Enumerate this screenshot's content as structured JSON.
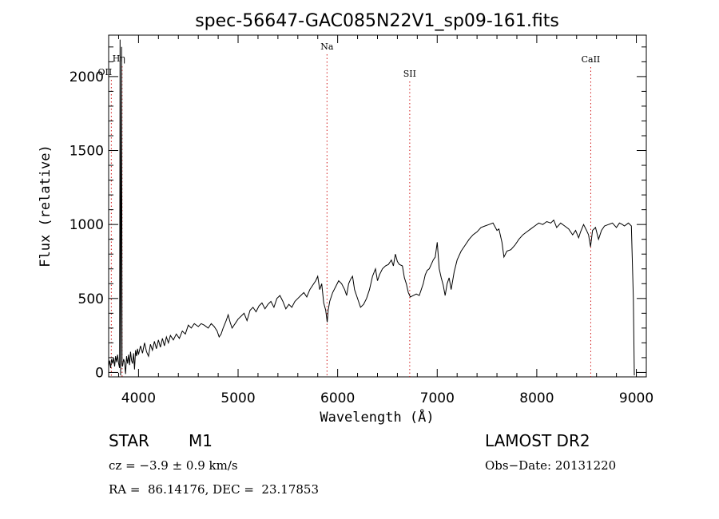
{
  "chart_data": {
    "type": "line",
    "title": "spec-56647-GAC085N22V1_sp09-161.fits",
    "xlabel": "Wavelength (Å)",
    "ylabel": "Flux (relative)",
    "xlim": [
      3700,
      9100
    ],
    "ylim": [
      -30,
      2280
    ],
    "x_ticks": [
      4000,
      5000,
      6000,
      7000,
      8000,
      9000
    ],
    "y_ticks": [
      0,
      500,
      1000,
      1500,
      2000
    ],
    "series": [
      {
        "points": [
          [
            3700,
            40
          ],
          [
            3710,
            80
          ],
          [
            3720,
            30
          ],
          [
            3730,
            90
          ],
          [
            3740,
            60
          ],
          [
            3750,
            100
          ],
          [
            3760,
            40
          ],
          [
            3770,
            110
          ],
          [
            3780,
            70
          ],
          [
            3790,
            120
          ],
          [
            3800,
            60
          ],
          [
            3810,
            30
          ],
          [
            3815,
            2250
          ],
          [
            3820,
            -20
          ],
          [
            3830,
            2200
          ],
          [
            3835,
            60
          ],
          [
            3840,
            40
          ],
          [
            3850,
            90
          ],
          [
            3860,
            70
          ],
          [
            3870,
            -10
          ],
          [
            3880,
            110
          ],
          [
            3890,
            60
          ],
          [
            3900,
            120
          ],
          [
            3910,
            50
          ],
          [
            3920,
            140
          ],
          [
            3930,
            80
          ],
          [
            3940,
            60
          ],
          [
            3950,
            130
          ],
          [
            3960,
            20
          ],
          [
            3970,
            150
          ],
          [
            3980,
            110
          ],
          [
            3990,
            160
          ],
          [
            4000,
            120
          ],
          [
            4020,
            180
          ],
          [
            4040,
            130
          ],
          [
            4060,
            200
          ],
          [
            4080,
            140
          ],
          [
            4100,
            110
          ],
          [
            4120,
            190
          ],
          [
            4140,
            150
          ],
          [
            4160,
            210
          ],
          [
            4180,
            160
          ],
          [
            4200,
            220
          ],
          [
            4220,
            170
          ],
          [
            4240,
            230
          ],
          [
            4260,
            180
          ],
          [
            4280,
            240
          ],
          [
            4300,
            200
          ],
          [
            4320,
            250
          ],
          [
            4350,
            220
          ],
          [
            4380,
            260
          ],
          [
            4410,
            230
          ],
          [
            4440,
            280
          ],
          [
            4470,
            260
          ],
          [
            4500,
            320
          ],
          [
            4530,
            300
          ],
          [
            4560,
            330
          ],
          [
            4600,
            310
          ],
          [
            4630,
            330
          ],
          [
            4660,
            320
          ],
          [
            4700,
            300
          ],
          [
            4730,
            330
          ],
          [
            4760,
            310
          ],
          [
            4790,
            280
          ],
          [
            4810,
            240
          ],
          [
            4830,
            260
          ],
          [
            4850,
            300
          ],
          [
            4880,
            350
          ],
          [
            4900,
            390
          ],
          [
            4920,
            340
          ],
          [
            4940,
            300
          ],
          [
            4970,
            330
          ],
          [
            5000,
            360
          ],
          [
            5030,
            380
          ],
          [
            5060,
            400
          ],
          [
            5090,
            350
          ],
          [
            5120,
            420
          ],
          [
            5150,
            440
          ],
          [
            5180,
            410
          ],
          [
            5210,
            450
          ],
          [
            5240,
            470
          ],
          [
            5270,
            430
          ],
          [
            5300,
            460
          ],
          [
            5330,
            480
          ],
          [
            5360,
            440
          ],
          [
            5390,
            500
          ],
          [
            5420,
            520
          ],
          [
            5450,
            480
          ],
          [
            5480,
            430
          ],
          [
            5510,
            460
          ],
          [
            5540,
            440
          ],
          [
            5570,
            480
          ],
          [
            5600,
            500
          ],
          [
            5630,
            520
          ],
          [
            5660,
            540
          ],
          [
            5690,
            510
          ],
          [
            5720,
            560
          ],
          [
            5750,
            590
          ],
          [
            5780,
            620
          ],
          [
            5800,
            650
          ],
          [
            5820,
            560
          ],
          [
            5840,
            600
          ],
          [
            5860,
            470
          ],
          [
            5880,
            420
          ],
          [
            5895,
            340
          ],
          [
            5905,
            420
          ],
          [
            5920,
            480
          ],
          [
            5950,
            540
          ],
          [
            5980,
            580
          ],
          [
            6010,
            620
          ],
          [
            6040,
            600
          ],
          [
            6070,
            560
          ],
          [
            6090,
            520
          ],
          [
            6110,
            600
          ],
          [
            6130,
            630
          ],
          [
            6150,
            650
          ],
          [
            6170,
            560
          ],
          [
            6190,
            520
          ],
          [
            6210,
            480
          ],
          [
            6230,
            440
          ],
          [
            6260,
            460
          ],
          [
            6290,
            500
          ],
          [
            6320,
            560
          ],
          [
            6350,
            650
          ],
          [
            6380,
            700
          ],
          [
            6400,
            620
          ],
          [
            6420,
            660
          ],
          [
            6450,
            700
          ],
          [
            6480,
            720
          ],
          [
            6510,
            730
          ],
          [
            6540,
            760
          ],
          [
            6560,
            720
          ],
          [
            6580,
            800
          ],
          [
            6600,
            750
          ],
          [
            6620,
            730
          ],
          [
            6650,
            720
          ],
          [
            6670,
            640
          ],
          [
            6690,
            600
          ],
          [
            6710,
            540
          ],
          [
            6730,
            510
          ],
          [
            6760,
            520
          ],
          [
            6790,
            530
          ],
          [
            6820,
            520
          ],
          [
            6840,
            560
          ],
          [
            6860,
            600
          ],
          [
            6880,
            660
          ],
          [
            6900,
            690
          ],
          [
            6920,
            700
          ],
          [
            6940,
            730
          ],
          [
            6960,
            760
          ],
          [
            6980,
            780
          ],
          [
            7000,
            880
          ],
          [
            7020,
            700
          ],
          [
            7040,
            640
          ],
          [
            7060,
            590
          ],
          [
            7080,
            520
          ],
          [
            7100,
            600
          ],
          [
            7120,
            640
          ],
          [
            7140,
            560
          ],
          [
            7170,
            680
          ],
          [
            7200,
            760
          ],
          [
            7240,
            820
          ],
          [
            7280,
            860
          ],
          [
            7320,
            900
          ],
          [
            7360,
            930
          ],
          [
            7400,
            950
          ],
          [
            7440,
            980
          ],
          [
            7480,
            990
          ],
          [
            7520,
            1000
          ],
          [
            7560,
            1010
          ],
          [
            7600,
            960
          ],
          [
            7620,
            970
          ],
          [
            7650,
            880
          ],
          [
            7670,
            780
          ],
          [
            7700,
            820
          ],
          [
            7740,
            830
          ],
          [
            7780,
            860
          ],
          [
            7820,
            900
          ],
          [
            7860,
            930
          ],
          [
            7900,
            950
          ],
          [
            7940,
            970
          ],
          [
            7980,
            990
          ],
          [
            8020,
            1010
          ],
          [
            8060,
            1000
          ],
          [
            8100,
            1020
          ],
          [
            8140,
            1010
          ],
          [
            8170,
            1030
          ],
          [
            8200,
            980
          ],
          [
            8240,
            1010
          ],
          [
            8280,
            990
          ],
          [
            8320,
            970
          ],
          [
            8360,
            930
          ],
          [
            8390,
            960
          ],
          [
            8420,
            910
          ],
          [
            8440,
            950
          ],
          [
            8470,
            1000
          ],
          [
            8500,
            960
          ],
          [
            8520,
            930
          ],
          [
            8540,
            850
          ],
          [
            8560,
            960
          ],
          [
            8590,
            980
          ],
          [
            8620,
            900
          ],
          [
            8650,
            960
          ],
          [
            8680,
            990
          ],
          [
            8720,
            1000
          ],
          [
            8760,
            1010
          ],
          [
            8800,
            980
          ],
          [
            8830,
            1010
          ],
          [
            8860,
            1000
          ],
          [
            8880,
            990
          ],
          [
            8900,
            1000
          ],
          [
            8920,
            1010
          ],
          [
            8950,
            990
          ],
          [
            8970,
            500
          ],
          [
            8980,
            -20
          ]
        ]
      }
    ],
    "lines": [
      {
        "label": "Hη",
        "x": 3835
      },
      {
        "label": "OII",
        "x": 3727
      },
      {
        "label": "Na",
        "x": 5893
      },
      {
        "label": "SII",
        "x": 6724
      },
      {
        "label": "CaII",
        "x": 8542
      }
    ],
    "line_color": "#d11a1a",
    "series_color": "#000000",
    "grid": false,
    "legend": "none"
  },
  "info": {
    "class_label": "STAR",
    "subclass_label": "M1",
    "survey": "LAMOST DR2",
    "cz": "cz = −3.9 ± 0.9 km/s",
    "obs_date": "Obs−Date: 20131220",
    "radec": "RA =  86.14176, DEC =  23.17853"
  }
}
